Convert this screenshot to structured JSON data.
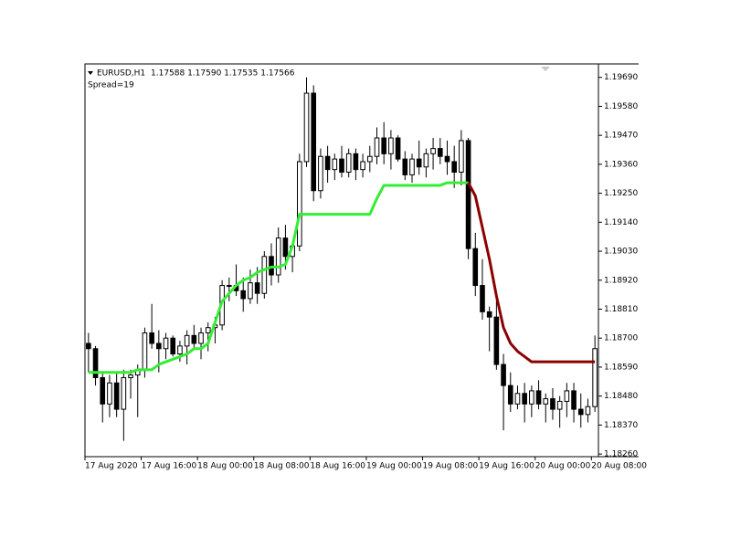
{
  "chart_data": {
    "type": "candlestick",
    "symbol": "EURUSD,H1",
    "quote": "1.17588 1.17590 1.17535 1.17566",
    "spread": "Spread=19",
    "up_color": "#ffffff",
    "down_color": "#000000",
    "categories": [
      "17 Aug 2020",
      null,
      null,
      null,
      null,
      null,
      null,
      null,
      "17 Aug 16:00",
      null,
      null,
      null,
      null,
      null,
      null,
      null,
      "18 Aug 00:00",
      null,
      null,
      null,
      null,
      null,
      null,
      null,
      "18 Aug 08:00",
      null,
      null,
      null,
      null,
      null,
      null,
      null,
      "18 Aug 16:00",
      null,
      null,
      null,
      null,
      null,
      null,
      null,
      "19 Aug 00:00",
      null,
      null,
      null,
      null,
      null,
      null,
      null,
      "19 Aug 08:00",
      null,
      null,
      null,
      null,
      null,
      null,
      null,
      "19 Aug 16:00",
      null,
      null,
      null,
      null,
      null,
      null,
      null,
      "20 Aug 00:00",
      null,
      null,
      null,
      null,
      null,
      null,
      null,
      "20 Aug 08:00"
    ],
    "open": [
      1.1868,
      1.1866,
      1.1855,
      1.1845,
      1.1853,
      1.1843,
      1.1855,
      1.1856,
      1.1858,
      1.1872,
      1.1868,
      1.1866,
      1.187,
      1.1864,
      1.1867,
      1.1871,
      1.1868,
      1.1872,
      1.1874,
      1.1875,
      1.189,
      1.189,
      1.1888,
      1.1885,
      1.1891,
      1.1887,
      1.1901,
      1.1894,
      1.1908,
      1.1901,
      1.1905,
      1.1937,
      1.1963,
      1.1926,
      1.1939,
      1.1934,
      1.1938,
      1.1933,
      1.194,
      1.1934,
      1.1937,
      1.1939,
      1.1946,
      1.194,
      1.1946,
      1.1938,
      1.1932,
      1.1938,
      1.1935,
      1.194,
      1.1942,
      1.1939,
      1.1937,
      1.1933,
      1.1945,
      1.1904,
      1.189,
      1.188,
      1.1878,
      1.186,
      1.1852,
      1.1845,
      1.1849,
      1.1845,
      1.185,
      1.1845,
      1.1847,
      1.1843,
      1.1846,
      1.185,
      1.1843,
      1.1841,
      1.1844
    ],
    "high": [
      1.1872,
      1.1867,
      1.1857,
      1.1856,
      1.1857,
      1.1858,
      1.1858,
      1.186,
      1.1874,
      1.1883,
      1.1873,
      1.1872,
      1.1871,
      1.1869,
      1.1873,
      1.1875,
      1.1874,
      1.1876,
      1.1878,
      1.1892,
      1.1893,
      1.1898,
      1.1893,
      1.1896,
      1.1897,
      1.1903,
      1.1906,
      1.1912,
      1.1913,
      1.1906,
      1.194,
      1.1969,
      1.1966,
      1.1942,
      1.1943,
      1.194,
      1.1943,
      1.1942,
      1.1942,
      1.194,
      1.1943,
      1.195,
      1.1952,
      1.1949,
      1.1947,
      1.1941,
      1.194,
      1.1945,
      1.1942,
      1.1946,
      1.1946,
      1.1945,
      1.1943,
      1.1949,
      1.1946,
      1.191,
      1.19,
      1.1882,
      1.1885,
      1.1864,
      1.1857,
      1.1852,
      1.1853,
      1.1852,
      1.1854,
      1.1849,
      1.1851,
      1.1848,
      1.1853,
      1.1853,
      1.1849,
      1.1847,
      1.1871
    ],
    "low": [
      1.1857,
      1.1852,
      1.1838,
      1.184,
      1.184,
      1.1831,
      1.1847,
      1.184,
      1.1855,
      1.1866,
      1.1857,
      1.1862,
      1.1863,
      1.1861,
      1.186,
      1.1866,
      1.1862,
      1.1865,
      1.1868,
      1.1873,
      1.1884,
      1.1886,
      1.188,
      1.1883,
      1.1883,
      1.1885,
      1.189,
      1.1891,
      1.1896,
      1.1895,
      1.1903,
      1.1935,
      1.1922,
      1.1923,
      1.1929,
      1.193,
      1.1931,
      1.1931,
      1.193,
      1.1931,
      1.1933,
      1.1936,
      1.1936,
      1.1934,
      1.1937,
      1.193,
      1.1929,
      1.1932,
      1.1931,
      1.1934,
      1.1936,
      1.1932,
      1.1927,
      1.1928,
      1.19,
      1.1886,
      1.1877,
      1.1865,
      1.1858,
      1.1835,
      1.1842,
      1.1843,
      1.1838,
      1.184,
      1.1843,
      1.1838,
      1.1839,
      1.1836,
      1.184,
      1.1838,
      1.1836,
      1.1838,
      1.1842
    ],
    "close": [
      1.1866,
      1.1855,
      1.1845,
      1.1853,
      1.1843,
      1.1855,
      1.1856,
      1.1858,
      1.1872,
      1.1868,
      1.1866,
      1.187,
      1.1864,
      1.1867,
      1.1871,
      1.1868,
      1.1872,
      1.1874,
      1.1875,
      1.189,
      1.189,
      1.1888,
      1.1885,
      1.1891,
      1.1887,
      1.1901,
      1.1894,
      1.1908,
      1.1901,
      1.1905,
      1.1937,
      1.1963,
      1.1926,
      1.1939,
      1.1934,
      1.1938,
      1.1933,
      1.194,
      1.1934,
      1.1937,
      1.1939,
      1.1946,
      1.194,
      1.1946,
      1.1938,
      1.1932,
      1.1938,
      1.1935,
      1.194,
      1.1942,
      1.1939,
      1.1937,
      1.1933,
      1.1945,
      1.1904,
      1.189,
      1.188,
      1.1878,
      1.186,
      1.1852,
      1.1845,
      1.1849,
      1.1845,
      1.185,
      1.1845,
      1.1847,
      1.1843,
      1.1846,
      1.185,
      1.1843,
      1.1841,
      1.1844,
      1.1866
    ],
    "series": [
      {
        "color": "#33ee33",
        "values": [
          1.1857,
          1.1857,
          1.1857,
          1.1857,
          1.1857,
          1.1857,
          1.1857,
          1.1858,
          1.1858,
          1.1858,
          1.186,
          1.1861,
          1.1862,
          1.1863,
          1.1864,
          1.1866,
          1.1866,
          1.1868,
          1.1876,
          1.1884,
          1.1887,
          1.189,
          1.1892,
          1.1893,
          1.1895,
          1.1896,
          1.1897,
          1.1897,
          1.1898,
          1.1905,
          1.1917,
          1.1917,
          1.1917,
          1.1917,
          1.1917,
          1.1917,
          1.1917,
          1.1917,
          1.1917,
          1.1917,
          1.1917,
          1.1923,
          1.1928,
          1.1928,
          1.1928,
          1.1928,
          1.1928,
          1.1928,
          1.1928,
          1.1928,
          1.1928,
          1.1929,
          1.1929,
          1.1929,
          1.1929,
          null,
          null,
          null,
          null,
          null,
          null,
          null,
          null,
          null,
          null,
          null,
          null,
          null,
          null,
          null,
          null,
          null,
          null
        ]
      },
      {
        "color": "#8b0000",
        "values": [
          null,
          null,
          null,
          null,
          null,
          null,
          null,
          null,
          null,
          null,
          null,
          null,
          null,
          null,
          null,
          null,
          null,
          null,
          null,
          null,
          null,
          null,
          null,
          null,
          null,
          null,
          null,
          null,
          null,
          null,
          null,
          null,
          null,
          null,
          null,
          null,
          null,
          null,
          null,
          null,
          null,
          null,
          null,
          null,
          null,
          null,
          null,
          null,
          null,
          null,
          null,
          null,
          null,
          null,
          1.1929,
          1.1924,
          1.1912,
          1.19,
          1.1886,
          1.1874,
          1.1868,
          1.1865,
          1.1863,
          1.1861,
          1.1861,
          1.1861,
          1.1861,
          1.1861,
          1.1861,
          1.1861,
          1.1861,
          1.1861,
          1.1861
        ]
      }
    ],
    "ylim": [
      1.1825,
      1.19741
    ],
    "yticks": [
      {
        "value": 1.1969,
        "label": "1.19690"
      },
      {
        "value": 1.1958,
        "label": "1.19580"
      },
      {
        "value": 1.1947,
        "label": "1.19470"
      },
      {
        "value": 1.1936,
        "label": "1.19360"
      },
      {
        "value": 1.1925,
        "label": "1.19250"
      },
      {
        "value": 1.1914,
        "label": "1.19140"
      },
      {
        "value": 1.1903,
        "label": "1.19030"
      },
      {
        "value": 1.1892,
        "label": "1.18920"
      },
      {
        "value": 1.1881,
        "label": "1.18810"
      },
      {
        "value": 1.187,
        "label": "1.18700"
      },
      {
        "value": 1.1859,
        "label": "1.18590"
      },
      {
        "value": 1.1848,
        "label": "1.18480"
      },
      {
        "value": 1.1837,
        "label": "1.18370"
      },
      {
        "value": 1.1826,
        "label": "1.18260"
      }
    ],
    "grid": false
  }
}
